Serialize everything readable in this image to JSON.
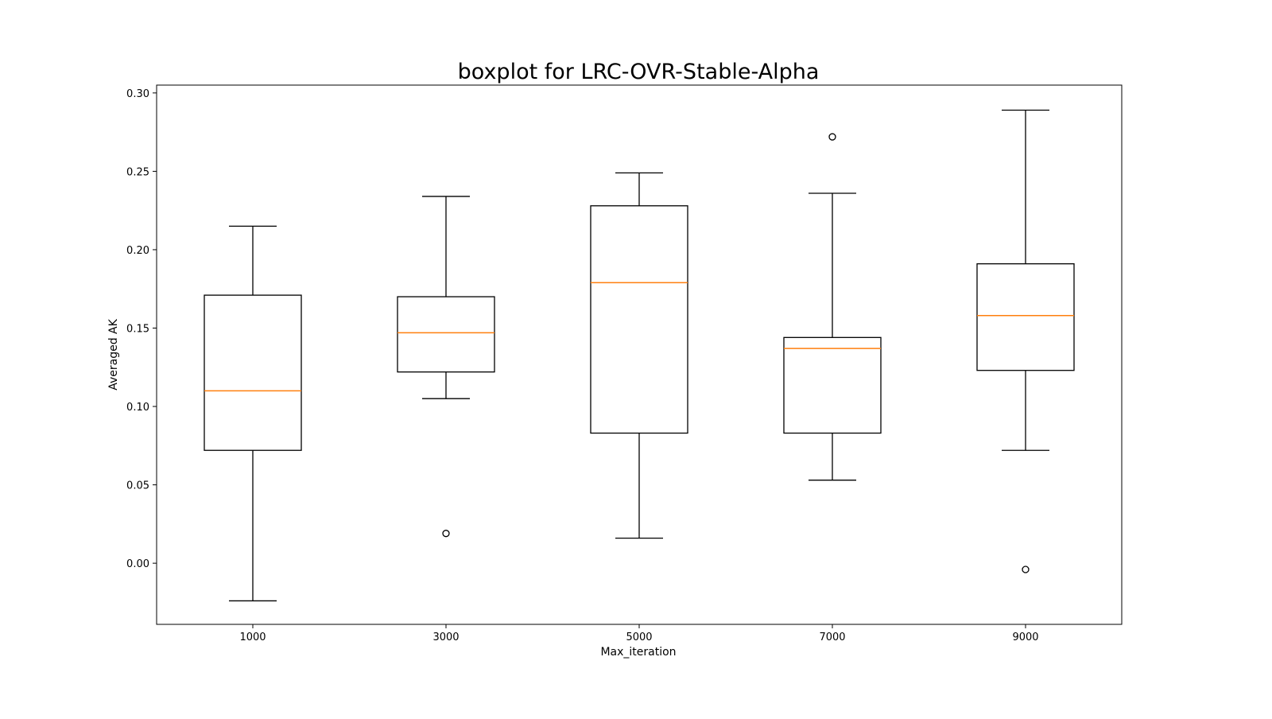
{
  "chart_data": {
    "type": "boxplot",
    "title": "boxplot for LRC-OVR-Stable-Alpha",
    "xlabel": "Max_iteration",
    "ylabel": "Averaged AK",
    "categories": [
      "1000",
      "3000",
      "5000",
      "7000",
      "9000"
    ],
    "ylim": [
      -0.039,
      0.305
    ],
    "yticks": [
      0.0,
      0.05,
      0.1,
      0.15,
      0.2,
      0.25,
      0.3
    ],
    "ytick_labels": [
      "0.00",
      "0.05",
      "0.10",
      "0.15",
      "0.20",
      "0.25",
      "0.30"
    ],
    "grid": false,
    "boxes": [
      {
        "category": "1000",
        "whisker_low": -0.024,
        "q1": 0.072,
        "median": 0.11,
        "q3": 0.171,
        "whisker_high": 0.215,
        "outliers": []
      },
      {
        "category": "3000",
        "whisker_low": 0.105,
        "q1": 0.122,
        "median": 0.147,
        "q3": 0.17,
        "whisker_high": 0.234,
        "outliers": [
          0.019
        ]
      },
      {
        "category": "5000",
        "whisker_low": 0.016,
        "q1": 0.083,
        "median": 0.179,
        "q3": 0.228,
        "whisker_high": 0.249,
        "outliers": []
      },
      {
        "category": "7000",
        "whisker_low": 0.053,
        "q1": 0.083,
        "median": 0.137,
        "q3": 0.144,
        "whisker_high": 0.236,
        "outliers": [
          0.272
        ]
      },
      {
        "category": "9000",
        "whisker_low": 0.072,
        "q1": 0.123,
        "median": 0.158,
        "q3": 0.191,
        "whisker_high": 0.289,
        "outliers": [
          -0.004
        ]
      }
    ],
    "colors": {
      "box": "#000000",
      "median": "#ff7f0e",
      "background": "#ffffff"
    }
  }
}
